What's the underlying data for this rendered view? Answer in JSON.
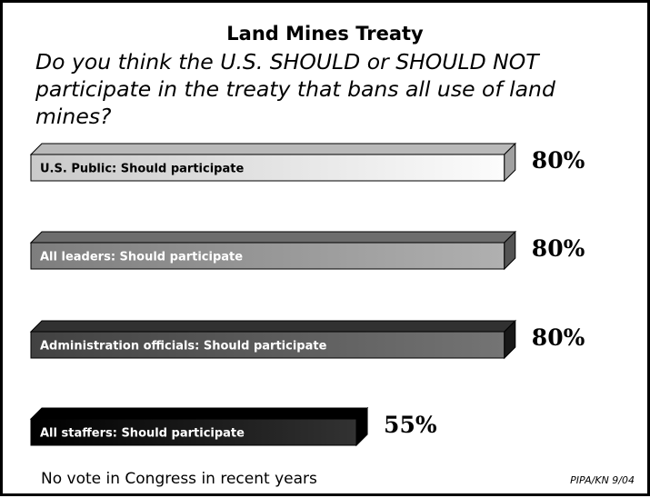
{
  "chart_data": {
    "type": "bar",
    "orientation": "horizontal",
    "title": "Land Mines Treaty",
    "subtitle": "Do you think the U.S. SHOULD or SHOULD NOT participate in the treaty that bans all use of land mines?",
    "categories": [
      "U.S. Public:  Should participate",
      "All leaders:  Should participate",
      "Administration officials:  Should participate",
      "All staffers:  Should participate"
    ],
    "values": [
      80,
      80,
      80,
      55
    ],
    "value_labels": [
      "80%",
      "80%",
      "80%",
      "55%"
    ],
    "unit": "%",
    "xlim": [
      0,
      100
    ],
    "style": "3d",
    "colors": [
      "#e6e6e6",
      "#9a9a9a",
      "#5e5e5e",
      "#1c1c1c"
    ],
    "label_colors": [
      "#000000",
      "#ffffff",
      "#ffffff",
      "#ffffff"
    ],
    "note": "No vote in Congress in recent years",
    "source": "PIPA/KN 9/04"
  }
}
